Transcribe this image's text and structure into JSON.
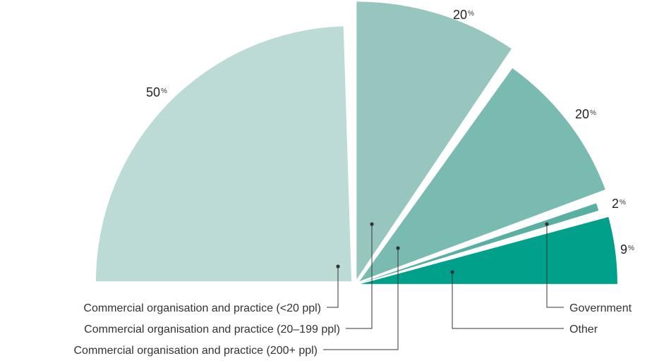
{
  "chart_data": {
    "type": "pie",
    "subtype": "half-pie (semicircle), exploded slices",
    "percent_sign": "%",
    "slices": [
      {
        "label": "Commercial organisation and practice (<20 ppl)",
        "value": 50,
        "color": "#bcdad6"
      },
      {
        "label": "Commercial organisation and practice (20–199 ppl)",
        "value": 20,
        "color": "#97c6bf"
      },
      {
        "label": "Commercial organisation and practice (200+ ppl)",
        "value": 20,
        "color": "#79bbb1"
      },
      {
        "label": "Government",
        "value": 2,
        "color": "#5aafa3"
      },
      {
        "label": "Other",
        "value": 9,
        "color": "#00a08b"
      }
    ],
    "legend": "leader lines below chart"
  }
}
